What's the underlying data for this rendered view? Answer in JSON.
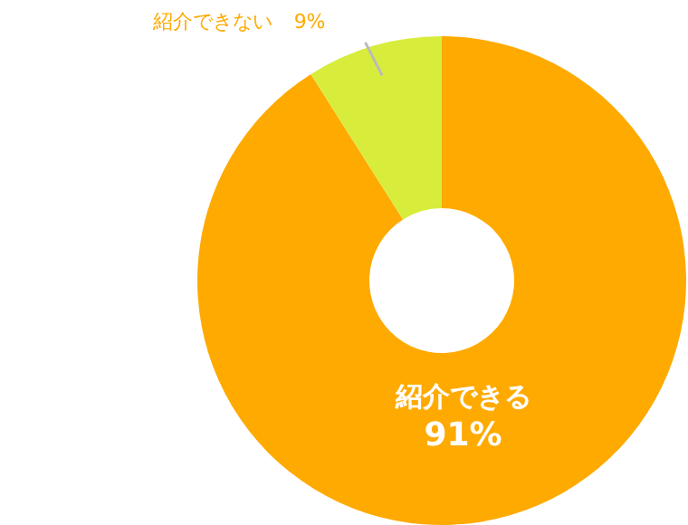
{
  "chart_data": {
    "type": "donut",
    "categories": [
      "紹介できる",
      "紹介できない"
    ],
    "values": [
      91,
      9
    ],
    "colors": [
      "#ffaa00",
      "#d8ec3b"
    ],
    "value_labels": [
      "91%",
      "9%"
    ]
  }
}
